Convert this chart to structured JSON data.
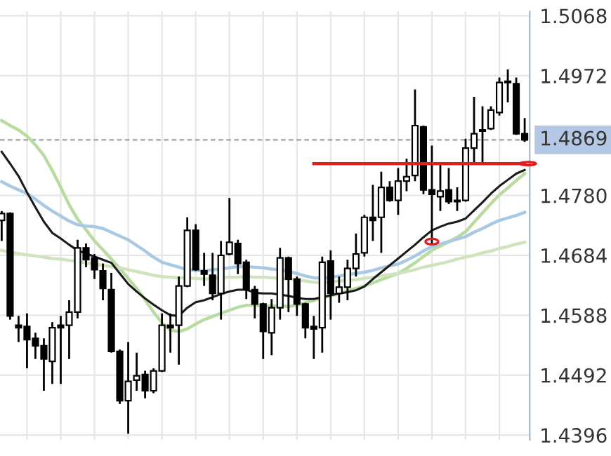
{
  "chart_data": {
    "type": "candlestick",
    "categories": [
      null,
      null,
      null,
      null,
      null,
      null,
      null,
      null,
      null,
      null,
      null,
      null,
      null,
      null,
      null,
      null,
      null,
      null,
      null,
      null,
      null,
      null,
      null,
      null,
      null,
      null,
      null,
      null,
      null,
      null,
      null,
      null,
      null,
      null,
      null,
      null,
      null,
      null,
      null,
      null,
      null,
      null,
      null,
      null,
      null,
      null,
      null,
      null,
      null,
      null,
      null,
      null,
      null,
      null,
      null,
      null,
      null,
      null,
      null,
      null,
      null,
      null,
      null
    ],
    "ohlc": [
      [
        1.474,
        1.4755,
        1.4707,
        1.4751
      ],
      [
        1.4751,
        1.4753,
        1.4581,
        1.4587
      ],
      [
        1.4572,
        1.4587,
        1.4545,
        1.4568
      ],
      [
        1.457,
        1.4591,
        1.4503,
        1.4549
      ],
      [
        1.4551,
        1.456,
        1.4518,
        1.4539
      ],
      [
        1.4539,
        1.4551,
        1.4467,
        1.4518
      ],
      [
        1.4514,
        1.4577,
        1.4478,
        1.4568
      ],
      [
        1.4572,
        1.4587,
        1.4478,
        1.4568
      ],
      [
        1.4572,
        1.4612,
        1.4518,
        1.4593
      ],
      [
        1.4593,
        1.4709,
        1.4583,
        1.4696
      ],
      [
        1.4696,
        1.4703,
        1.4665,
        1.4677
      ],
      [
        1.468,
        1.4686,
        1.4646,
        1.4661
      ],
      [
        1.4659,
        1.4671,
        1.4612,
        1.4631
      ],
      [
        1.4629,
        1.4656,
        1.4528,
        1.453
      ],
      [
        1.453,
        1.4533,
        1.4446,
        1.4451
      ],
      [
        1.4451,
        1.4545,
        1.4398,
        1.4482
      ],
      [
        1.4484,
        1.4528,
        1.4467,
        1.4491
      ],
      [
        1.4493,
        1.4499,
        1.4455,
        1.4467
      ],
      [
        1.4467,
        1.4503,
        1.4463,
        1.4499
      ],
      [
        1.4499,
        1.4591,
        1.4497,
        1.4572
      ],
      [
        1.4572,
        1.4591,
        1.4528,
        1.4568
      ],
      [
        1.4572,
        1.465,
        1.4509,
        1.4635
      ],
      [
        1.4635,
        1.4745,
        1.4633,
        1.4724
      ],
      [
        1.4724,
        1.4734,
        1.4659,
        1.4661
      ],
      [
        1.4659,
        1.4688,
        1.4635,
        1.4654
      ],
      [
        1.4652,
        1.4688,
        1.4612,
        1.4623
      ],
      [
        1.4623,
        1.4707,
        1.4581,
        1.4684
      ],
      [
        1.4686,
        1.4776,
        1.4684,
        1.4705
      ],
      [
        1.4703,
        1.4709,
        1.4654,
        1.4671
      ],
      [
        1.4673,
        1.4677,
        1.4614,
        1.4629
      ],
      [
        1.4629,
        1.4635,
        1.4583,
        1.4606
      ],
      [
        1.4606,
        1.4608,
        1.4518,
        1.4562
      ],
      [
        1.456,
        1.4614,
        1.4524,
        1.46
      ],
      [
        1.46,
        1.4696,
        1.4581,
        1.468
      ],
      [
        1.468,
        1.4682,
        1.4593,
        1.4646
      ],
      [
        1.4646,
        1.465,
        1.4587,
        1.4606
      ],
      [
        1.4606,
        1.4608,
        1.4551,
        1.4568
      ],
      [
        1.457,
        1.4587,
        1.4518,
        1.4566
      ],
      [
        1.4568,
        1.4682,
        1.4528,
        1.4673
      ],
      [
        1.4675,
        1.4692,
        1.4581,
        1.4623
      ],
      [
        1.4623,
        1.465,
        1.4608,
        1.4633
      ],
      [
        1.4633,
        1.4677,
        1.4612,
        1.4663
      ],
      [
        1.4663,
        1.4719,
        1.465,
        1.4686
      ],
      [
        1.4688,
        1.4749,
        1.4682,
        1.4745
      ],
      [
        1.4745,
        1.4797,
        1.4707,
        1.474
      ],
      [
        1.4745,
        1.4818,
        1.4688,
        1.4793
      ],
      [
        1.4793,
        1.4803,
        1.477,
        1.4772
      ],
      [
        1.4772,
        1.4824,
        1.4749,
        1.4803
      ],
      [
        1.4803,
        1.4839,
        1.4787,
        1.481
      ],
      [
        1.4812,
        1.495,
        1.4803,
        1.4892
      ],
      [
        1.489,
        1.4892,
        1.4782,
        1.4789
      ],
      [
        1.4789,
        1.486,
        1.4703,
        1.4782
      ],
      [
        1.4778,
        1.4833,
        1.4755,
        1.4787
      ],
      [
        1.4789,
        1.4824,
        1.4766,
        1.477
      ],
      [
        1.4772,
        1.4793,
        1.4755,
        1.477
      ],
      [
        1.4772,
        1.4871,
        1.477,
        1.4856
      ],
      [
        1.4856,
        1.4938,
        1.4829,
        1.4879
      ],
      [
        1.4883,
        1.4923,
        1.4831,
        1.4885
      ],
      [
        1.4887,
        1.4923,
        1.4885,
        1.4917
      ],
      [
        1.4913,
        1.4969,
        1.4908,
        1.4961
      ],
      [
        1.4963,
        1.4982,
        1.4929,
        1.4961
      ],
      [
        1.4959,
        1.4969,
        1.4877,
        1.4879
      ],
      [
        1.4879,
        1.4904,
        1.4866,
        1.4869
      ]
    ],
    "colors": [
      "#ffffff",
      "#000000",
      "#000000",
      "#000000",
      "#000000",
      "#000000",
      "#ffffff",
      "#000000",
      "#ffffff",
      "#ffffff",
      "#000000",
      "#000000",
      "#000000",
      "#000000",
      "#000000",
      "#ffffff",
      "#ffffff",
      "#000000",
      "#ffffff",
      "#ffffff",
      "#000000",
      "#ffffff",
      "#ffffff",
      "#000000",
      "#000000",
      "#000000",
      "#ffffff",
      "#ffffff",
      "#000000",
      "#000000",
      "#000000",
      "#000000",
      "#ffffff",
      "#ffffff",
      "#000000",
      "#000000",
      "#000000",
      "#000000",
      "#ffffff",
      "#000000",
      "#ffffff",
      "#ffffff",
      "#ffffff",
      "#ffffff",
      "#000000",
      "#ffffff",
      "#000000",
      "#ffffff",
      "#ffffff",
      "#ffffff",
      "#000000",
      "#000000",
      "#ffffff",
      "#000000",
      "#000000",
      "#ffffff",
      "#ffffff",
      "#ffffff",
      "#ffffff",
      "#ffffff",
      "#000000",
      "#000000",
      "#000000"
    ],
    "series": [
      {
        "type": "line",
        "color": "#b8dca0",
        "values": [
          1.49,
          1.4892,
          1.4885,
          1.4875,
          1.4861,
          1.4844,
          1.482,
          1.4793,
          1.4765,
          1.4742,
          1.4725,
          1.4707,
          1.4693,
          1.4678,
          1.4663,
          1.4647,
          1.4631,
          1.4613,
          1.4593,
          1.4576,
          1.4564,
          1.4562,
          1.4566,
          1.4574,
          1.4581,
          1.4586,
          1.4591,
          1.4596,
          1.4601,
          1.4604,
          1.4604,
          1.4603,
          1.4603,
          1.4603,
          1.4602,
          1.4604,
          1.4608,
          1.4612,
          1.4616,
          1.4619,
          1.4623,
          1.4627,
          1.4631,
          1.4635,
          1.464,
          1.4645,
          1.465,
          1.4655,
          1.4663,
          1.4672,
          1.4682,
          1.4692,
          1.4699,
          1.4706,
          1.4713,
          1.4722,
          1.4737,
          1.4752,
          1.4767,
          1.4781,
          1.4792,
          1.4804,
          1.4815
        ]
      },
      {
        "type": "line",
        "color": "#a9c9e2",
        "values": [
          1.4802,
          1.4795,
          1.4789,
          1.4783,
          1.4774,
          1.4764,
          1.4755,
          1.4747,
          1.4739,
          1.4733,
          1.4731,
          1.473,
          1.4727,
          1.4721,
          1.4715,
          1.4709,
          1.47,
          1.4691,
          1.4681,
          1.4673,
          1.4669,
          1.4665,
          1.4661,
          1.466,
          1.4659,
          1.4661,
          1.4662,
          1.4664,
          1.4666,
          1.4666,
          1.4665,
          1.4664,
          1.4662,
          1.4661,
          1.4658,
          1.4655,
          1.4651,
          1.4648,
          1.4647,
          1.4649,
          1.4651,
          1.4653,
          1.4655,
          1.4657,
          1.466,
          1.4664,
          1.4667,
          1.467,
          1.4676,
          1.4683,
          1.4691,
          1.4698,
          1.4702,
          1.4706,
          1.471,
          1.4714,
          1.4721,
          1.4727,
          1.4734,
          1.474,
          1.4744,
          1.4748,
          1.4753
        ]
      },
      {
        "type": "line",
        "color": "#cfe3bd",
        "values": [
          1.4692,
          1.4689,
          1.4687,
          1.4685,
          1.4683,
          1.4681,
          1.4679,
          1.4678,
          1.4676,
          1.4674,
          1.4672,
          1.467,
          1.4668,
          1.4666,
          1.4664,
          1.4661,
          1.4658,
          1.4655,
          1.4652,
          1.465,
          1.4649,
          1.4648,
          1.4648,
          1.4647,
          1.4646,
          1.4647,
          1.4648,
          1.4649,
          1.4649,
          1.465,
          1.4649,
          1.4649,
          1.4648,
          1.4647,
          1.4646,
          1.4645,
          1.4643,
          1.4641,
          1.464,
          1.4642,
          1.4643,
          1.4644,
          1.4645,
          1.4647,
          1.4649,
          1.4651,
          1.4653,
          1.4655,
          1.4658,
          1.4661,
          1.4665,
          1.4668,
          1.4671,
          1.4674,
          1.4678,
          1.4681,
          1.4684,
          1.4688,
          1.4691,
          1.4695,
          1.4698,
          1.4702,
          1.4705
        ]
      },
      {
        "type": "line",
        "color": "#1a1a1a",
        "values": [
          1.485,
          1.4831,
          1.4811,
          1.4785,
          1.4761,
          1.4738,
          1.472,
          1.4711,
          1.4701,
          1.4692,
          1.4687,
          1.4682,
          1.4677,
          1.4672,
          1.4655,
          1.4638,
          1.4626,
          1.4615,
          1.4605,
          1.4596,
          1.4588,
          1.4587,
          1.46,
          1.4609,
          1.4612,
          1.4617,
          1.4622,
          1.4626,
          1.4629,
          1.4629,
          1.4624,
          1.4623,
          1.4623,
          1.4621,
          1.4619,
          1.4616,
          1.4614,
          1.4614,
          1.4617,
          1.462,
          1.4623,
          1.4625,
          1.4628,
          1.4634,
          1.4646,
          1.4657,
          1.4668,
          1.4679,
          1.469,
          1.4701,
          1.4713,
          1.4724,
          1.473,
          1.4735,
          1.4738,
          1.4743,
          1.4756,
          1.4769,
          1.4783,
          1.4795,
          1.4805,
          1.4815,
          1.4821
        ]
      },
      {
        "type": "line",
        "color": "#e02020",
        "values": [
          null,
          null,
          null,
          null,
          null,
          null,
          null,
          null,
          null,
          null,
          null,
          null,
          null,
          null,
          null,
          null,
          null,
          null,
          null,
          null,
          null,
          null,
          null,
          null,
          null,
          null,
          null,
          null,
          null,
          null,
          null,
          null,
          null,
          null,
          null,
          null,
          null,
          1.4831,
          1.4831,
          1.4831,
          1.4831,
          1.4831,
          1.4831,
          1.4831,
          1.4831,
          1.4831,
          1.4831,
          1.4831,
          1.4831,
          1.4831,
          1.4831,
          1.4831,
          1.4831,
          1.4831,
          1.4831,
          1.4831,
          1.4831,
          1.4831,
          1.4831,
          1.4831,
          1.4831,
          1.4831,
          1.4831
        ]
      }
    ],
    "ref_lines": [
      {
        "axis": "y",
        "value": 1.4869,
        "label": "1.4869",
        "color": "#a0a0a0",
        "line_style": "dashed"
      }
    ],
    "ylim": [
      1.4388,
      1.5075
    ],
    "yticks": [
      1.4396,
      1.4492,
      1.4588,
      1.4684,
      {
        "value": 1.478,
        "label": "1.4780"
      },
      1.4972,
      1.5068
    ],
    "grid": true,
    "tick_labels": "y"
  }
}
